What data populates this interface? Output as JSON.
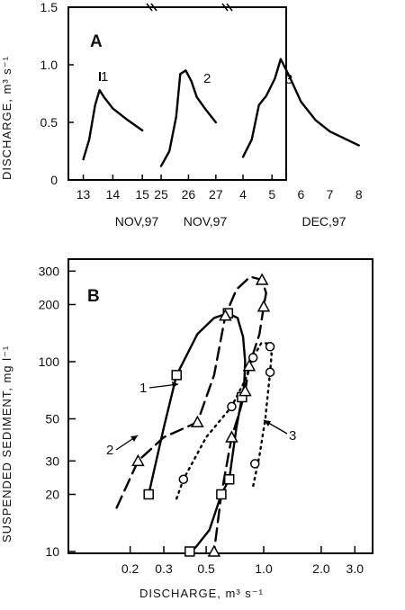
{
  "chart_data": [
    {
      "panel": "A",
      "type": "line",
      "ylabel": "DISCHARGE, m³ s⁻¹",
      "ylim": [
        0,
        1.5
      ],
      "y_ticks": [
        "0",
        "0.5",
        "1.0",
        "1.5"
      ],
      "grid": false,
      "segments": [
        {
          "date_label": "NOV,97",
          "x_ticks": [
            "13",
            "14",
            "15"
          ],
          "series": [
            {
              "name": "1",
              "x": [
                13.0,
                13.2,
                13.4,
                13.55,
                13.7,
                14.0,
                14.5,
                15.0
              ],
              "y": [
                0.18,
                0.35,
                0.65,
                0.78,
                0.72,
                0.62,
                0.52,
                0.43
              ]
            }
          ]
        },
        {
          "date_label": "NOV,97",
          "x_ticks": [
            "25",
            "26",
            "27"
          ],
          "series": [
            {
              "name": "2",
              "x": [
                25.0,
                25.3,
                25.55,
                25.7,
                25.9,
                26.1,
                26.3,
                26.6,
                27.0
              ],
              "y": [
                0.12,
                0.25,
                0.55,
                0.92,
                0.95,
                0.86,
                0.72,
                0.62,
                0.5
              ]
            }
          ]
        },
        {
          "date_label": "DEC,97",
          "x_ticks": [
            "4",
            "5",
            "6",
            "7",
            "8"
          ],
          "series": [
            {
              "name": "3",
              "x": [
                4.0,
                4.3,
                4.55,
                4.8,
                5.1,
                5.3,
                5.6,
                6.0,
                6.5,
                7.0,
                7.5,
                8.0
              ],
              "y": [
                0.2,
                0.35,
                0.65,
                0.73,
                0.88,
                1.05,
                0.9,
                0.68,
                0.52,
                0.42,
                0.36,
                0.3
              ]
            }
          ]
        }
      ]
    },
    {
      "panel": "B",
      "type": "scatter",
      "xlabel": "DISCHARGE, m³ s⁻¹",
      "ylabel": "SUSPENDED SEDIMENT, mg l⁻¹",
      "x_scale": "log",
      "y_scale": "log",
      "xlim": [
        0.1,
        4
      ],
      "ylim": [
        10,
        350
      ],
      "x_ticks": [
        "0.2",
        "0.3",
        "0.5",
        "1.0",
        "2.0",
        "3.0"
      ],
      "y_ticks": [
        "10",
        "20",
        "30",
        "50",
        "100",
        "200",
        "300"
      ],
      "grid": false,
      "series": [
        {
          "name": "1",
          "marker": "square",
          "line": "solid",
          "points": {
            "x": [
              0.25,
              0.35,
              0.65,
              0.77,
              0.6,
              0.66,
              0.41
            ],
            "y": [
              20,
              85,
              180,
              65,
              20,
              24,
              10
            ]
          },
          "curve": {
            "x": [
              0.25,
              0.3,
              0.35,
              0.45,
              0.55,
              0.65,
              0.73,
              0.78,
              0.8,
              0.79,
              0.77,
              0.72,
              0.66,
              0.6,
              0.52,
              0.44,
              0.41
            ],
            "y": [
              20,
              45,
              85,
              140,
              170,
              180,
              170,
              135,
              100,
              75,
              65,
              45,
              24,
              20,
              13,
              10.5,
              10
            ]
          }
        },
        {
          "name": "2",
          "marker": "triangle",
          "line": "dashed",
          "points": {
            "x": [
              0.22,
              0.45,
              0.63,
              0.98,
              1.0,
              0.84,
              0.8,
              0.68,
              0.55
            ],
            "y": [
              30,
              48,
              175,
              270,
              195,
              95,
              70,
              40,
              10
            ]
          },
          "curve": {
            "x": [
              0.17,
              0.22,
              0.3,
              0.45,
              0.55,
              0.63,
              0.72,
              0.85,
              0.98,
              1.03,
              1.0,
              0.95,
              0.84,
              0.8,
              0.75,
              0.68,
              0.6,
              0.55
            ],
            "y": [
              17,
              30,
              40,
              48,
              85,
              175,
              240,
              280,
              270,
              230,
              195,
              140,
              95,
              70,
              55,
              40,
              20,
              10
            ]
          }
        },
        {
          "name": "3",
          "marker": "circle",
          "line": "dotted",
          "points": {
            "x": [
              0.38,
              0.68,
              0.88,
              0.9,
              1.08,
              1.08
            ],
            "y": [
              24,
              58,
              105,
              29,
              120,
              88
            ]
          },
          "curve": {
            "x": [
              0.35,
              0.38,
              0.5,
              0.68,
              0.8,
              0.88,
              0.97,
              1.05,
              1.1,
              1.08,
              1.02,
              0.95,
              0.88
            ],
            "y": [
              19,
              24,
              40,
              58,
              80,
              105,
              125,
              125,
              110,
              88,
              50,
              32,
              22
            ]
          }
        }
      ]
    }
  ],
  "panels": {
    "a": {
      "letter": "A",
      "labels": [
        "1",
        "2",
        "3"
      ]
    },
    "b": {
      "letter": "B",
      "labels": [
        "1",
        "2",
        "3"
      ]
    }
  }
}
